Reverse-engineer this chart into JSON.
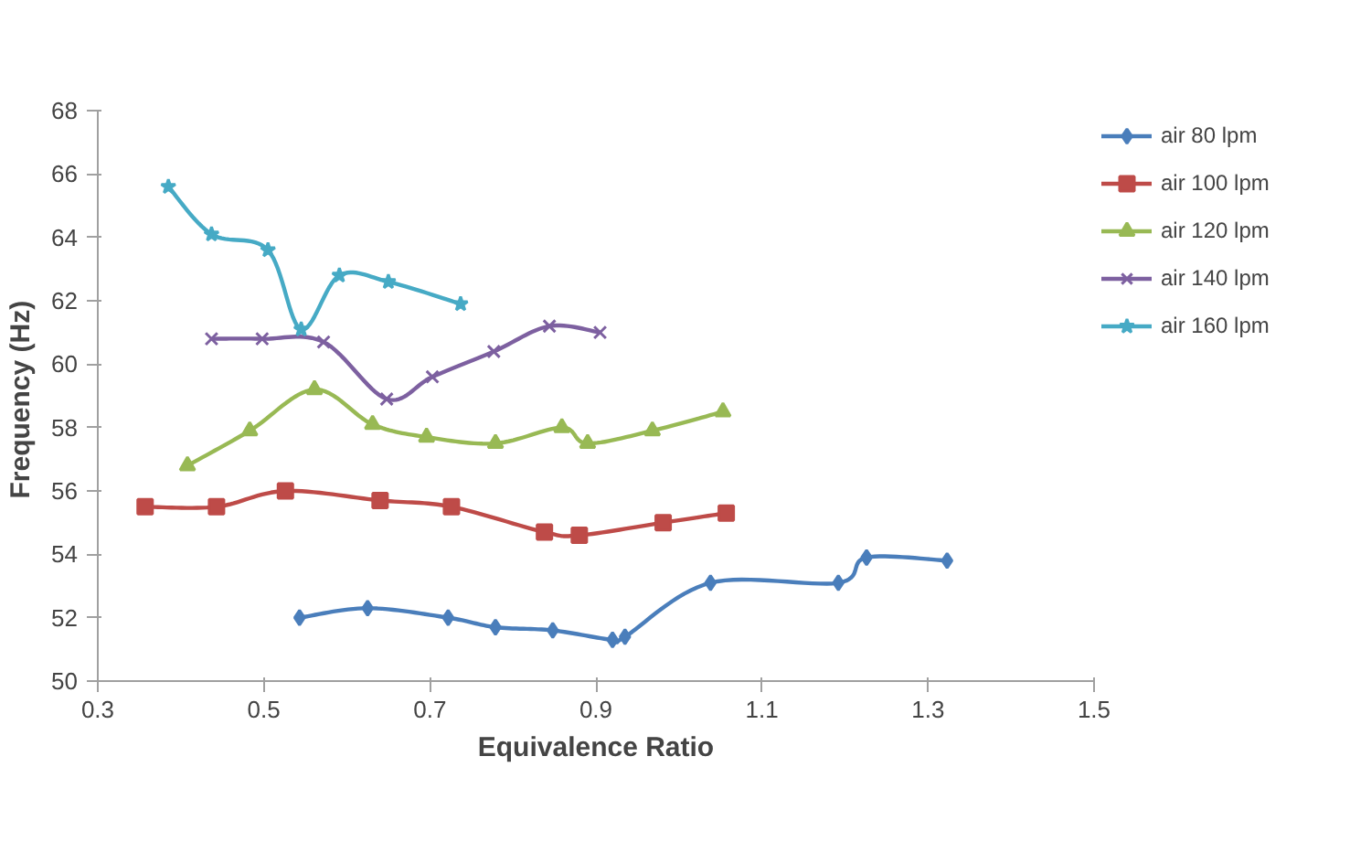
{
  "chart_data": {
    "type": "line",
    "xlabel": "Equivalence Ratio",
    "ylabel": "Frequency  (Hz)",
    "xlim": [
      0.3,
      1.5
    ],
    "xticks": [
      {
        "value": 0.3,
        "label": "0.3"
      },
      {
        "value": 0.5,
        "label": "0.5"
      },
      {
        "value": 0.7,
        "label": "0.7"
      },
      {
        "value": 0.9,
        "label": "0.9"
      },
      {
        "value": 1.1,
        "label": "1.1"
      },
      {
        "value": 1.3,
        "label": "1.3"
      },
      {
        "value": 1.5,
        "label": "1.5"
      }
    ],
    "ylim": [
      50,
      68
    ],
    "yticks": [
      50,
      52,
      54,
      56,
      58,
      60,
      62,
      64,
      66,
      68
    ],
    "grid": false,
    "legend": "right",
    "series": [
      {
        "name": "air 80 lpm",
        "color": "#4a7ebb",
        "marker": "diamond",
        "x": [
          0.543,
          0.625,
          0.722,
          0.779,
          0.848,
          0.92,
          0.935,
          1.038,
          1.192,
          1.226,
          1.323
        ],
        "values": [
          52.0,
          52.3,
          52.0,
          51.7,
          51.6,
          51.3,
          51.4,
          53.1,
          53.1,
          53.9,
          53.8
        ]
      },
      {
        "name": "air 100 lpm",
        "color": "#be4b48",
        "marker": "square",
        "x": [
          0.357,
          0.443,
          0.526,
          0.64,
          0.726,
          0.838,
          0.88,
          0.981,
          1.057
        ],
        "values": [
          55.5,
          55.5,
          56.0,
          55.7,
          55.5,
          54.7,
          54.6,
          55.0,
          55.3
        ]
      },
      {
        "name": "air 120 lpm",
        "color": "#98b954",
        "marker": "triangle",
        "x": [
          0.408,
          0.483,
          0.561,
          0.631,
          0.696,
          0.779,
          0.859,
          0.89,
          0.968,
          1.053
        ],
        "values": [
          56.8,
          57.9,
          59.2,
          58.1,
          57.7,
          57.5,
          58.0,
          57.5,
          57.9,
          58.5
        ]
      },
      {
        "name": "air 140 lpm",
        "color": "#7d60a0",
        "marker": "cross",
        "x": [
          0.437,
          0.498,
          0.572,
          0.648,
          0.703,
          0.777,
          0.844,
          0.905
        ],
        "values": [
          60.8,
          60.8,
          60.7,
          58.9,
          59.6,
          60.4,
          61.2,
          61.0
        ]
      },
      {
        "name": "air 160 lpm",
        "color": "#46aac5",
        "marker": "star",
        "x": [
          0.385,
          0.437,
          0.505,
          0.545,
          0.591,
          0.65,
          0.737
        ],
        "values": [
          65.6,
          64.1,
          63.6,
          61.1,
          62.8,
          62.6,
          61.9
        ]
      }
    ]
  }
}
